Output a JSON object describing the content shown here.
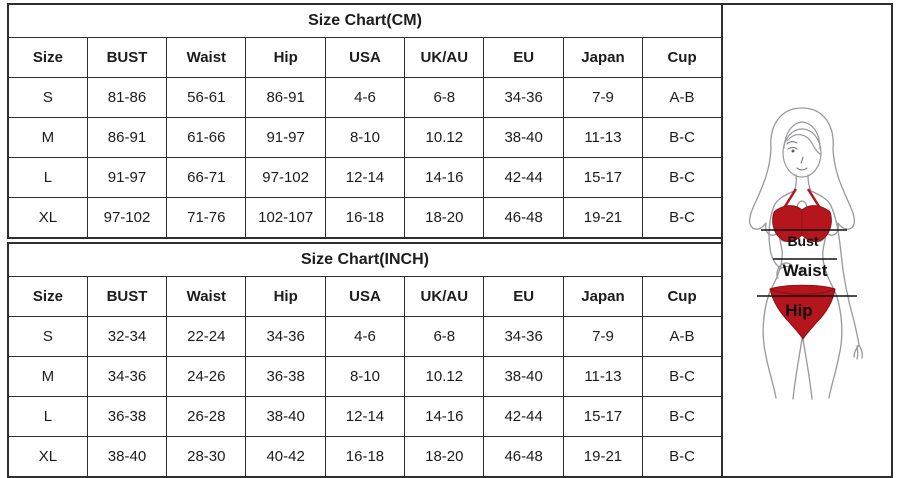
{
  "tables": [
    {
      "title": "Size Chart(CM)",
      "columns": [
        "Size",
        "BUST",
        "Waist",
        "Hip",
        "USA",
        "UK/AU",
        "EU",
        "Japan",
        "Cup"
      ],
      "rows": [
        [
          "S",
          "81-86",
          "56-61",
          "86-91",
          "4-6",
          "6-8",
          "34-36",
          "7-9",
          "A-B"
        ],
        [
          "M",
          "86-91",
          "61-66",
          "91-97",
          "8-10",
          "10.12",
          "38-40",
          "11-13",
          "B-C"
        ],
        [
          "L",
          "91-97",
          "66-71",
          "97-102",
          "12-14",
          "14-16",
          "42-44",
          "15-17",
          "B-C"
        ],
        [
          "XL",
          "97-102",
          "71-76",
          "102-107",
          "16-18",
          "18-20",
          "46-48",
          "19-21",
          "B-C"
        ]
      ]
    },
    {
      "title": "Size Chart(INCH)",
      "columns": [
        "Size",
        "BUST",
        "Waist",
        "Hip",
        "USA",
        "UK/AU",
        "EU",
        "Japan",
        "Cup"
      ],
      "rows": [
        [
          "S",
          "32-34",
          "22-24",
          "34-36",
          "4-6",
          "6-8",
          "34-36",
          "7-9",
          "A-B"
        ],
        [
          "M",
          "34-36",
          "24-26",
          "36-38",
          "8-10",
          "10.12",
          "38-40",
          "11-13",
          "B-C"
        ],
        [
          "L",
          "36-38",
          "26-28",
          "38-40",
          "12-14",
          "14-16",
          "42-44",
          "15-17",
          "B-C"
        ],
        [
          "XL",
          "38-40",
          "28-30",
          "40-42",
          "16-18",
          "18-20",
          "46-48",
          "19-21",
          "B-C"
        ]
      ]
    }
  ],
  "figure": {
    "description": "line-art woman in red bikini with measurement lines",
    "labels": {
      "bust": "Bust",
      "waist": "Waist",
      "hip": "Hip"
    },
    "colors": {
      "bikini_red": "#b5151c",
      "bikini_red_dark": "#8e0f15",
      "outline_gray": "#97989c",
      "measure_line": "#111111",
      "table_border": "#2e2e2e"
    }
  }
}
